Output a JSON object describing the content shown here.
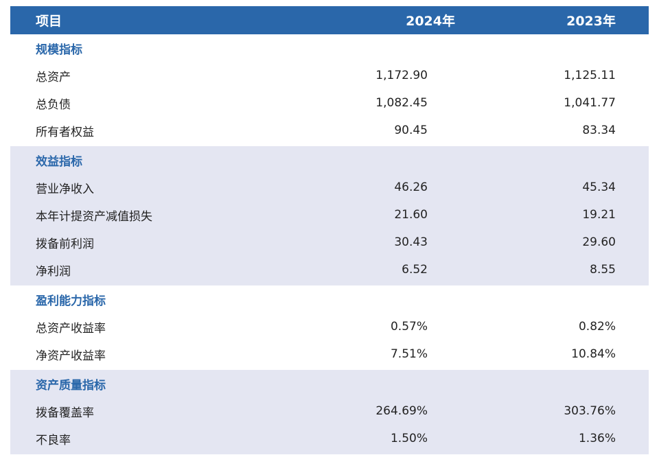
{
  "header": {
    "col_item": "项目",
    "col_2024": "2024年",
    "col_2023": "2023年"
  },
  "sections": [
    {
      "title": "规模指标",
      "rows": [
        {
          "label": "总资产",
          "v2024": "1,172.90",
          "v2023": "1,125.11"
        },
        {
          "label": "总负债",
          "v2024": "1,082.45",
          "v2023": "1,041.77"
        },
        {
          "label": "所有者权益",
          "v2024": "90.45",
          "v2023": "83.34"
        }
      ]
    },
    {
      "title": "效益指标",
      "rows": [
        {
          "label": "营业净收入",
          "v2024": "46.26",
          "v2023": "45.34"
        },
        {
          "label": "本年计提资产减值损失",
          "v2024": "21.60",
          "v2023": "19.21"
        },
        {
          "label": "拨备前利润",
          "v2024": "30.43",
          "v2023": "29.60"
        },
        {
          "label": "净利润",
          "v2024": "6.52",
          "v2023": "8.55"
        }
      ]
    },
    {
      "title": "盈利能力指标",
      "rows": [
        {
          "label": "总资产收益率",
          "v2024": "0.57%",
          "v2023": "0.82%"
        },
        {
          "label": "净资产收益率",
          "v2024": "7.51%",
          "v2023": "10.84%"
        }
      ]
    },
    {
      "title": "资产质量指标",
      "rows": [
        {
          "label": "拨备覆盖率",
          "v2024": "264.69%",
          "v2023": "303.76%"
        },
        {
          "label": "不良率",
          "v2024": "1.50%",
          "v2023": "1.36%"
        }
      ]
    }
  ]
}
